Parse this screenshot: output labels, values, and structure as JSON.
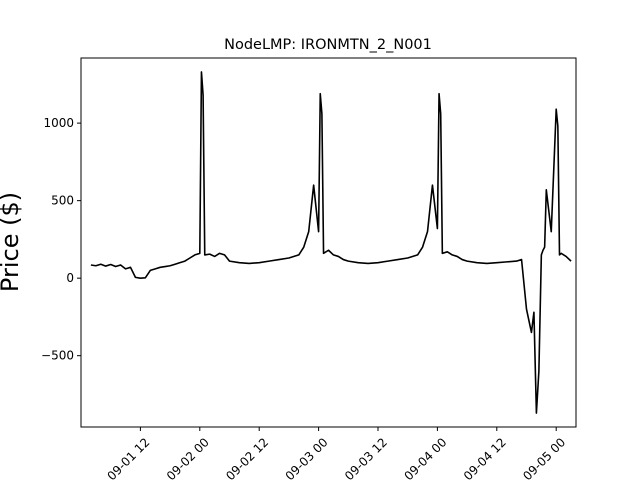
{
  "chart_data": {
    "type": "line",
    "title": "NodeLMP: IRONMTN_2_N001",
    "ylabel": "Price ($)",
    "xlabel": "",
    "grid": false,
    "legend": "none",
    "line_color": "#000000",
    "xlim": [
      "2024-09-01 00:00",
      "2024-09-05 04:00"
    ],
    "ylim": [
      -960,
      1420
    ],
    "x_tick_labels": [
      "09-01 12",
      "09-02 00",
      "09-02 12",
      "09-03 00",
      "09-03 12",
      "09-04 00",
      "09-04 12",
      "09-05 00"
    ],
    "x_ticks": [
      "2024-09-01 12:00",
      "2024-09-02 00:00",
      "2024-09-02 12:00",
      "2024-09-03 00:00",
      "2024-09-03 12:00",
      "2024-09-04 00:00",
      "2024-09-04 12:00",
      "2024-09-05 00:00"
    ],
    "y_ticks": [
      -500,
      0,
      500,
      1000
    ],
    "y_tick_labels": [
      "−500",
      "0",
      "500",
      "1000"
    ],
    "series": [
      {
        "x": [
          "2024-09-01 02:00",
          "2024-09-01 03:00",
          "2024-09-01 04:00",
          "2024-09-01 05:00",
          "2024-09-01 06:00",
          "2024-09-01 07:00",
          "2024-09-01 08:00",
          "2024-09-01 09:00",
          "2024-09-01 10:00",
          "2024-09-01 11:00",
          "2024-09-01 12:00",
          "2024-09-01 13:00",
          "2024-09-01 14:00",
          "2024-09-01 15:00",
          "2024-09-01 16:00",
          "2024-09-01 17:00",
          "2024-09-01 18:00",
          "2024-09-01 19:00",
          "2024-09-01 20:00",
          "2024-09-01 21:00",
          "2024-09-01 22:00",
          "2024-09-01 23:00",
          "2024-09-02 00:00",
          "2024-09-02 00:20",
          "2024-09-02 00:40",
          "2024-09-02 01:00",
          "2024-09-02 02:00",
          "2024-09-02 03:00",
          "2024-09-02 04:00",
          "2024-09-02 05:00",
          "2024-09-02 06:00",
          "2024-09-02 08:00",
          "2024-09-02 10:00",
          "2024-09-02 12:00",
          "2024-09-02 14:00",
          "2024-09-02 16:00",
          "2024-09-02 18:00",
          "2024-09-02 20:00",
          "2024-09-02 21:00",
          "2024-09-02 22:00",
          "2024-09-02 23:00",
          "2024-09-03 00:00",
          "2024-09-03 00:20",
          "2024-09-03 00:40",
          "2024-09-03 01:00",
          "2024-09-03 02:00",
          "2024-09-03 03:00",
          "2024-09-03 04:00",
          "2024-09-03 05:00",
          "2024-09-03 06:00",
          "2024-09-03 08:00",
          "2024-09-03 10:00",
          "2024-09-03 12:00",
          "2024-09-03 14:00",
          "2024-09-03 16:00",
          "2024-09-03 18:00",
          "2024-09-03 20:00",
          "2024-09-03 21:00",
          "2024-09-03 22:00",
          "2024-09-03 23:00",
          "2024-09-04 00:00",
          "2024-09-04 00:20",
          "2024-09-04 00:40",
          "2024-09-04 01:00",
          "2024-09-04 02:00",
          "2024-09-04 03:00",
          "2024-09-04 04:00",
          "2024-09-04 05:00",
          "2024-09-04 06:00",
          "2024-09-04 08:00",
          "2024-09-04 10:00",
          "2024-09-04 12:00",
          "2024-09-04 14:00",
          "2024-09-04 16:00",
          "2024-09-04 17:00",
          "2024-09-04 18:00",
          "2024-09-04 19:00",
          "2024-09-04 19:30",
          "2024-09-04 20:00",
          "2024-09-04 20:30",
          "2024-09-04 21:00",
          "2024-09-04 21:20",
          "2024-09-04 21:40",
          "2024-09-04 22:00",
          "2024-09-04 23:00",
          "2024-09-05 00:00",
          "2024-09-05 00:20",
          "2024-09-05 00:40",
          "2024-09-05 01:00",
          "2024-09-05 02:00",
          "2024-09-05 03:00"
        ],
        "y": [
          85,
          80,
          90,
          78,
          88,
          75,
          85,
          60,
          70,
          5,
          0,
          2,
          50,
          60,
          70,
          75,
          80,
          90,
          100,
          110,
          130,
          150,
          160,
          1330,
          1180,
          150,
          155,
          140,
          160,
          150,
          110,
          100,
          95,
          100,
          110,
          120,
          130,
          150,
          200,
          300,
          600,
          300,
          1190,
          1060,
          160,
          180,
          150,
          140,
          120,
          110,
          100,
          95,
          100,
          110,
          120,
          130,
          150,
          200,
          300,
          600,
          320,
          1190,
          1060,
          160,
          170,
          150,
          140,
          120,
          110,
          100,
          95,
          100,
          105,
          110,
          120,
          -200,
          -350,
          -220,
          -870,
          -600,
          150,
          180,
          200,
          570,
          300,
          1090,
          980,
          150,
          160,
          140,
          110
        ]
      }
    ]
  }
}
